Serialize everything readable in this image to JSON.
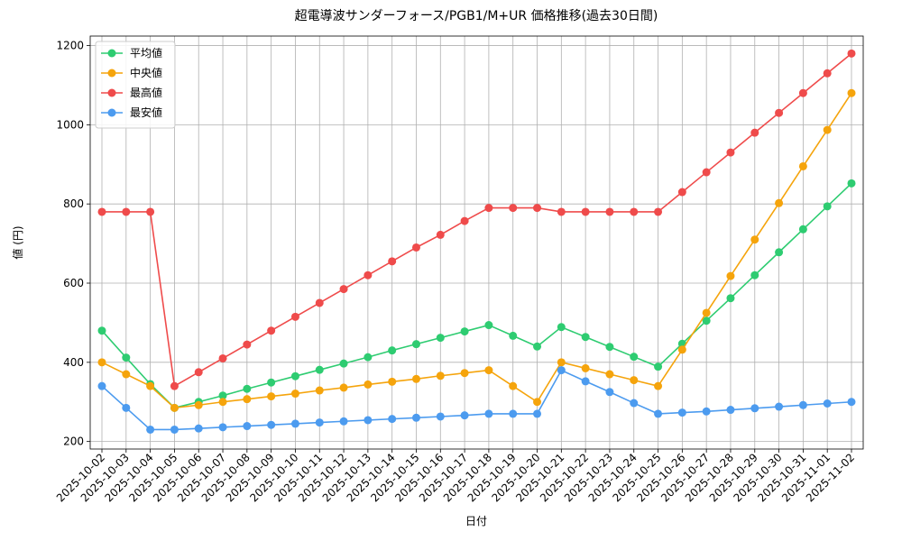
{
  "chart_data": {
    "type": "line",
    "title": "超電導波サンダーフォース/PGB1/M+UR 価格推移(過去30日間)",
    "x_label": "日付",
    "y_label": "値 (円)",
    "categories": [
      "2025-10-02",
      "2025-10-03",
      "2025-10-04",
      "2025-10-05",
      "2025-10-06",
      "2025-10-07",
      "2025-10-08",
      "2025-10-09",
      "2025-10-10",
      "2025-10-11",
      "2025-10-12",
      "2025-10-13",
      "2025-10-14",
      "2025-10-15",
      "2025-10-16",
      "2025-10-17",
      "2025-10-18",
      "2025-10-19",
      "2025-10-20",
      "2025-10-21",
      "2025-10-22",
      "2025-10-23",
      "2025-10-24",
      "2025-10-25",
      "2025-10-26",
      "2025-10-27",
      "2025-10-28",
      "2025-10-29",
      "2025-10-30",
      "2025-10-31",
      "2025-11-01",
      "2025-11-02"
    ],
    "series": [
      {
        "name": "平均値",
        "color": "#2ecc71",
        "values": [
          480,
          412,
          345,
          285,
          300,
          316,
          333,
          349,
          365,
          381,
          397,
          413,
          430,
          446,
          462,
          478,
          494,
          467,
          440,
          489,
          464,
          439,
          414,
          389,
          447,
          505,
          562,
          620,
          678,
          736,
          794,
          852
        ]
      },
      {
        "name": "中央値",
        "color": "#f5a40c",
        "values": [
          400,
          370,
          340,
          285,
          292,
          300,
          307,
          314,
          321,
          329,
          336,
          344,
          351,
          358,
          366,
          373,
          380,
          340,
          300,
          400,
          385,
          370,
          355,
          340,
          432,
          525,
          618,
          710,
          802,
          895,
          987,
          1080
        ]
      },
      {
        "name": "最高値",
        "color": "#ef4b4b",
        "values": [
          780,
          780,
          780,
          340,
          375,
          410,
          445,
          480,
          515,
          550,
          585,
          620,
          655,
          690,
          722,
          757,
          790,
          790,
          790,
          780,
          780,
          780,
          780,
          780,
          830,
          880,
          930,
          980,
          1030,
          1080,
          1130,
          1180
        ]
      },
      {
        "name": "最安値",
        "color": "#4c9bef",
        "values": [
          340,
          285,
          230,
          230,
          233,
          236,
          239,
          242,
          245,
          248,
          251,
          254,
          257,
          260,
          263,
          266,
          270,
          270,
          270,
          380,
          352,
          325,
          297,
          270,
          273,
          276,
          280,
          284,
          288,
          292,
          296,
          300
        ]
      }
    ],
    "ylim": [
      181,
      1224
    ],
    "yticks": [
      200,
      400,
      600,
      800,
      1000,
      1200
    ],
    "grid": true,
    "legend": "upper-left"
  }
}
